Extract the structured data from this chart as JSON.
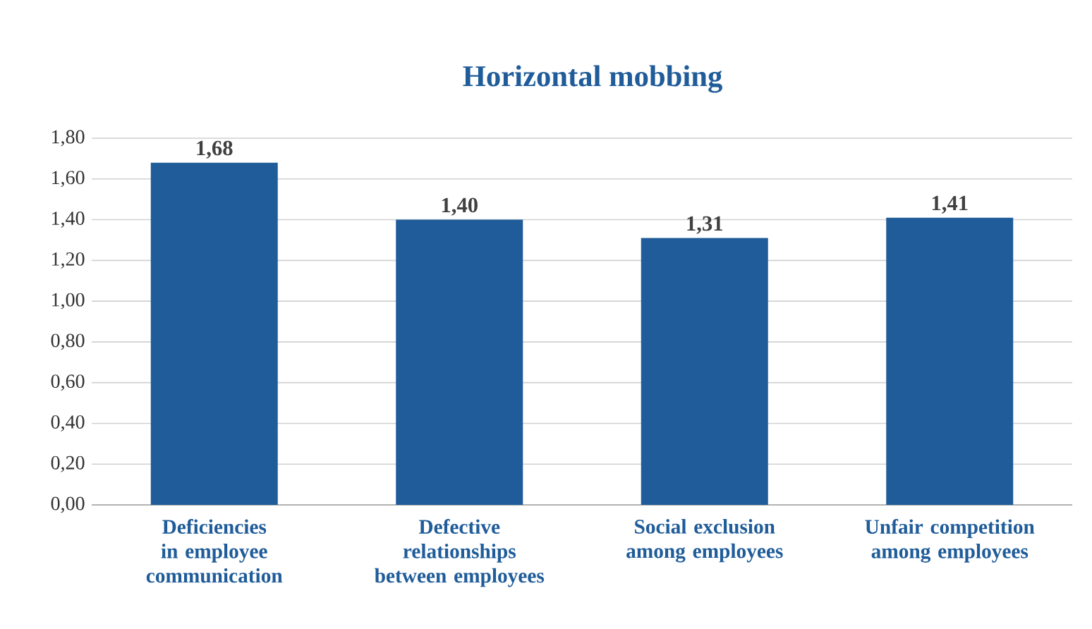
{
  "chart_data": {
    "type": "bar",
    "title": "Horizontal mobbing",
    "categories": [
      "Deficiencies in employee communication",
      "Defective relationships between employees",
      "Social exclusion among employees",
      "Unfair competition among employees"
    ],
    "values": [
      1.68,
      1.4,
      1.31,
      1.41
    ],
    "value_labels": [
      "1,68",
      "1,40",
      "1,31",
      "1,41"
    ],
    "color": "#1f5c99",
    "ylim": [
      0,
      1.8
    ],
    "yticks": [
      {
        "value": 0,
        "label": "0,00"
      },
      {
        "value": 0.2,
        "label": "0,20"
      },
      {
        "value": 0.4,
        "label": "0,40"
      },
      {
        "value": 0.6,
        "label": "0,60"
      },
      {
        "value": 0.8,
        "label": "0,80"
      },
      {
        "value": 1.0,
        "label": "1,00"
      },
      {
        "value": 1.2,
        "label": "1,20"
      },
      {
        "value": 1.4,
        "label": "1,40"
      },
      {
        "value": 1.6,
        "label": "1,60"
      },
      {
        "value": 1.8,
        "label": "1,80"
      }
    ],
    "grid": "y"
  }
}
